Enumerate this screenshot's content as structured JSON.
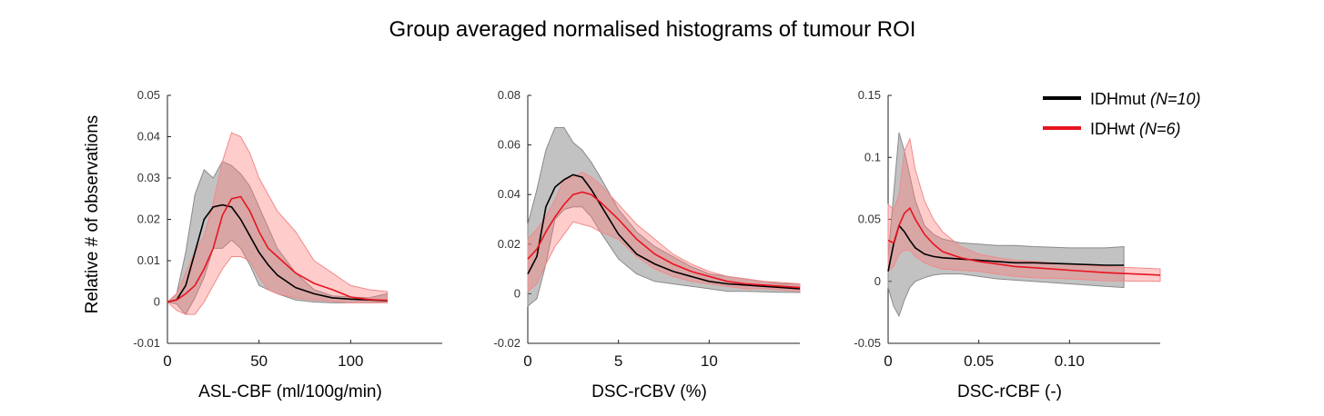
{
  "figure": {
    "title": "Group averaged normalised histograms of tumour ROI",
    "ylabel": "Relative # of observations",
    "legend": [
      {
        "name": "IDHmut",
        "n": "(N=10)",
        "color": "#000000"
      },
      {
        "name": "IDHwt",
        "n": "(N=6)",
        "color": "#e8141e"
      }
    ]
  },
  "chart_data": [
    {
      "type": "line",
      "xlabel": "ASL-CBF (ml/100g/min)",
      "xlim": [
        0,
        150
      ],
      "ylim": [
        -0.01,
        0.05
      ],
      "xticks": [
        0,
        50,
        100
      ],
      "xtick_labels": [
        "0",
        "50",
        "100"
      ],
      "yticks": [
        -0.01,
        0,
        0.01,
        0.02,
        0.03,
        0.04,
        0.05
      ],
      "ytick_labels": [
        "-0.01",
        "0",
        "0.01",
        "0.02",
        "0.03",
        "0.04",
        "0.05"
      ],
      "series": [
        {
          "name": "IDHmut",
          "color": "#000000",
          "x": [
            0,
            5,
            10,
            15,
            20,
            25,
            30,
            35,
            40,
            45,
            50,
            55,
            60,
            70,
            80,
            90,
            100,
            110,
            120
          ],
          "mean": [
            0,
            0.0005,
            0.004,
            0.012,
            0.02,
            0.023,
            0.0235,
            0.023,
            0.02,
            0.016,
            0.012,
            0.009,
            0.0065,
            0.0035,
            0.002,
            0.001,
            0.0007,
            0.0005,
            0.0003
          ],
          "upper": [
            0,
            0.002,
            0.012,
            0.026,
            0.032,
            0.03,
            0.034,
            0.033,
            0.031,
            0.028,
            0.023,
            0.018,
            0.013,
            0.007,
            0.003,
            0.0015,
            0.0012,
            0.001,
            0.002
          ],
          "lower": [
            0,
            -0.0005,
            -0.003,
            0.001,
            0.006,
            0.013,
            0.013,
            0.015,
            0.013,
            0.009,
            0.004,
            0.003,
            0.002,
            0.0005,
            0,
            -0.0002,
            -0.0002,
            -0.0002,
            -0.0001
          ]
        },
        {
          "name": "IDHwt",
          "color": "#e8141e",
          "x": [
            0,
            5,
            10,
            15,
            20,
            25,
            30,
            35,
            40,
            45,
            50,
            55,
            60,
            70,
            80,
            90,
            100,
            110,
            120
          ],
          "mean": [
            0,
            0.0005,
            0.002,
            0.004,
            0.008,
            0.013,
            0.021,
            0.025,
            0.0255,
            0.022,
            0.017,
            0.013,
            0.011,
            0.007,
            0.0045,
            0.003,
            0.0012,
            0.0006,
            0.0004
          ],
          "upper": [
            0,
            0.002,
            0.007,
            0.012,
            0.016,
            0.024,
            0.034,
            0.041,
            0.04,
            0.036,
            0.03,
            0.026,
            0.022,
            0.017,
            0.01,
            0.007,
            0.004,
            0.003,
            0.0025
          ],
          "lower": [
            0,
            -0.002,
            -0.003,
            -0.003,
            0,
            0.004,
            0.008,
            0.011,
            0.011,
            0.01,
            0.006,
            0.003,
            0.002,
            0.001,
            0.0005,
            0.0002,
            -0.0002,
            -0.0002,
            -0.0002
          ]
        }
      ]
    },
    {
      "type": "line",
      "xlabel": "DSC-rCBV (%)",
      "xlim": [
        0,
        15
      ],
      "ylim": [
        -0.02,
        0.08
      ],
      "xticks": [
        0,
        5,
        10
      ],
      "xtick_labels": [
        "0",
        "5",
        "10"
      ],
      "yticks": [
        -0.02,
        0,
        0.02,
        0.04,
        0.06,
        0.08
      ],
      "ytick_labels": [
        "-0.02",
        "0",
        "0.02",
        "0.04",
        "0.06",
        "0.08"
      ],
      "series": [
        {
          "name": "IDHmut",
          "color": "#000000",
          "x": [
            0,
            0.5,
            1,
            1.5,
            2,
            2.5,
            3,
            3.5,
            4,
            5,
            6,
            7,
            8,
            9,
            10,
            11,
            12,
            13,
            14,
            15
          ],
          "mean": [
            0.008,
            0.015,
            0.035,
            0.043,
            0.046,
            0.048,
            0.047,
            0.042,
            0.036,
            0.024,
            0.016,
            0.012,
            0.009,
            0.007,
            0.005,
            0.004,
            0.0035,
            0.003,
            0.0025,
            0.002
          ],
          "upper": [
            0.028,
            0.042,
            0.058,
            0.067,
            0.067,
            0.061,
            0.058,
            0.053,
            0.047,
            0.034,
            0.025,
            0.019,
            0.015,
            0.011,
            0.008,
            0.007,
            0.006,
            0.005,
            0.004,
            0.004
          ],
          "lower": [
            -0.005,
            -0.002,
            0.012,
            0.03,
            0.034,
            0.035,
            0.035,
            0.031,
            0.025,
            0.014,
            0.008,
            0.005,
            0.004,
            0.003,
            0.002,
            0.001,
            0.001,
            0.0008,
            0.0006,
            0.0005
          ]
        },
        {
          "name": "IDHwt",
          "color": "#e8141e",
          "x": [
            0,
            0.5,
            1,
            1.5,
            2,
            2.5,
            3,
            3.5,
            4,
            5,
            6,
            7,
            8,
            9,
            10,
            11,
            12,
            13,
            14,
            15
          ],
          "mean": [
            0.014,
            0.018,
            0.025,
            0.031,
            0.036,
            0.04,
            0.041,
            0.04,
            0.037,
            0.03,
            0.022,
            0.016,
            0.012,
            0.009,
            0.007,
            0.005,
            0.004,
            0.0035,
            0.003,
            0.0025
          ],
          "upper": [
            0.022,
            0.026,
            0.031,
            0.038,
            0.046,
            0.047,
            0.049,
            0.047,
            0.044,
            0.036,
            0.028,
            0.022,
            0.016,
            0.012,
            0.009,
            0.007,
            0.006,
            0.005,
            0.0045,
            0.004
          ],
          "lower": [
            0.001,
            0.004,
            0.012,
            0.019,
            0.024,
            0.029,
            0.028,
            0.027,
            0.025,
            0.022,
            0.015,
            0.01,
            0.007,
            0.005,
            0.004,
            0.003,
            0.002,
            0.002,
            0.0015,
            0.001
          ]
        }
      ]
    },
    {
      "type": "line",
      "xlabel": "DSC-rCBF (-)",
      "xlim": [
        0,
        0.15
      ],
      "ylim": [
        -0.05,
        0.15
      ],
      "xticks": [
        0,
        0.05,
        0.1
      ],
      "xtick_labels": [
        "0",
        "0.05",
        "0.10"
      ],
      "yticks": [
        -0.05,
        0,
        0.05,
        0.1,
        0.15
      ],
      "ytick_labels": [
        "-0.05",
        "0",
        "0.05",
        "0.1",
        "0.15"
      ],
      "series": [
        {
          "name": "IDHmut",
          "color": "#000000",
          "x": [
            0,
            0.003,
            0.006,
            0.009,
            0.012,
            0.015,
            0.02,
            0.025,
            0.03,
            0.04,
            0.05,
            0.06,
            0.07,
            0.08,
            0.1,
            0.12,
            0.13
          ],
          "mean": [
            0.008,
            0.03,
            0.045,
            0.04,
            0.033,
            0.027,
            0.022,
            0.02,
            0.019,
            0.018,
            0.017,
            0.016,
            0.015,
            0.015,
            0.014,
            0.013,
            0.013
          ],
          "upper": [
            0.02,
            0.07,
            0.12,
            0.105,
            0.085,
            0.065,
            0.045,
            0.038,
            0.034,
            0.031,
            0.03,
            0.029,
            0.029,
            0.028,
            0.027,
            0.027,
            0.028
          ],
          "lower": [
            -0.005,
            -0.02,
            -0.028,
            -0.015,
            -0.005,
            0,
            0.003,
            0.005,
            0.006,
            0.006,
            0.004,
            0.002,
            0.001,
            0,
            -0.002,
            -0.004,
            -0.005
          ]
        },
        {
          "name": "IDHwt",
          "color": "#e8141e",
          "x": [
            0,
            0.003,
            0.006,
            0.009,
            0.012,
            0.015,
            0.02,
            0.025,
            0.03,
            0.04,
            0.05,
            0.06,
            0.07,
            0.08,
            0.1,
            0.12,
            0.15
          ],
          "mean": [
            0.033,
            0.031,
            0.045,
            0.055,
            0.059,
            0.05,
            0.038,
            0.03,
            0.024,
            0.019,
            0.016,
            0.014,
            0.012,
            0.011,
            0.009,
            0.007,
            0.005
          ],
          "upper": [
            0.062,
            0.058,
            0.07,
            0.105,
            0.115,
            0.09,
            0.065,
            0.05,
            0.04,
            0.028,
            0.022,
            0.019,
            0.017,
            0.016,
            0.014,
            0.012,
            0.01
          ],
          "lower": [
            0.008,
            0.012,
            0.022,
            0.025,
            0.025,
            0.02,
            0.015,
            0.012,
            0.01,
            0.009,
            0.008,
            0.006,
            0.004,
            0.003,
            0.002,
            0.0005,
            0
          ]
        }
      ]
    }
  ]
}
